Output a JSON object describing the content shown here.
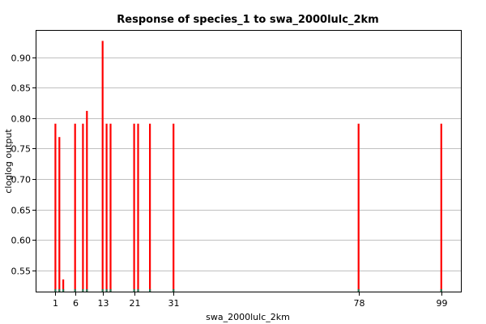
{
  "chart_data": {
    "type": "bar",
    "title": "Response of species_1 to swa_2000lulc_2km",
    "xlabel": "swa_2000lulc_2km",
    "ylabel": "cloglog output",
    "xlim": [
      -4,
      104
    ],
    "ylim": [
      0.515,
      0.945
    ],
    "xticks": [
      1,
      6,
      13,
      21,
      31,
      78,
      99
    ],
    "yticks": [
      0.55,
      0.6,
      0.65,
      0.7,
      0.75,
      0.8,
      0.85,
      0.9
    ],
    "ytick_labels": [
      "0.55",
      "0.60",
      "0.65",
      "0.70",
      "0.75",
      "0.80",
      "0.85",
      "0.90"
    ],
    "grid": true,
    "bar_color": "#ff0000",
    "x": [
      1,
      2,
      3,
      6,
      8,
      9,
      13,
      14,
      15,
      21,
      22,
      25,
      31,
      78,
      99
    ],
    "values": [
      0.791,
      0.769,
      0.535,
      0.791,
      0.791,
      0.812,
      0.927,
      0.791,
      0.791,
      0.791,
      0.791,
      0.791,
      0.791,
      0.791,
      0.791
    ]
  }
}
